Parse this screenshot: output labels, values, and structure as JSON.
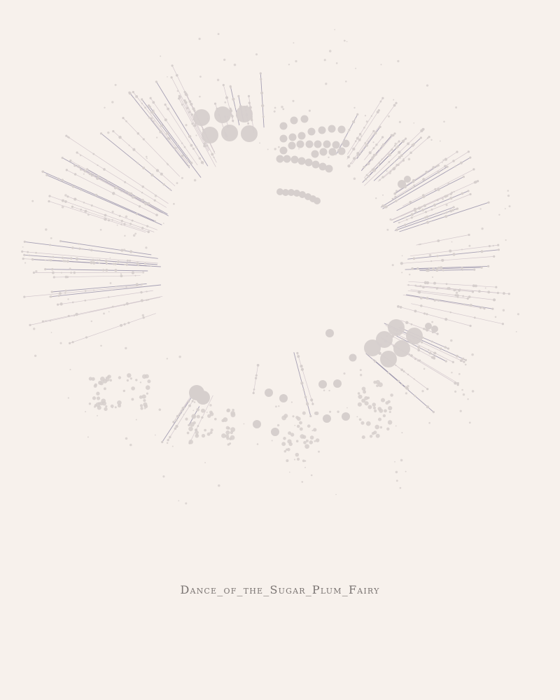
{
  "title": "Dance_of_the_Sugar_Plum_Fairy",
  "colors": {
    "background": "#f7f1ec",
    "line_dark": "#8a84a0",
    "line_light": "#cbbfc6",
    "dot": "#d6cfcd",
    "title": "#7a7472"
  }
}
